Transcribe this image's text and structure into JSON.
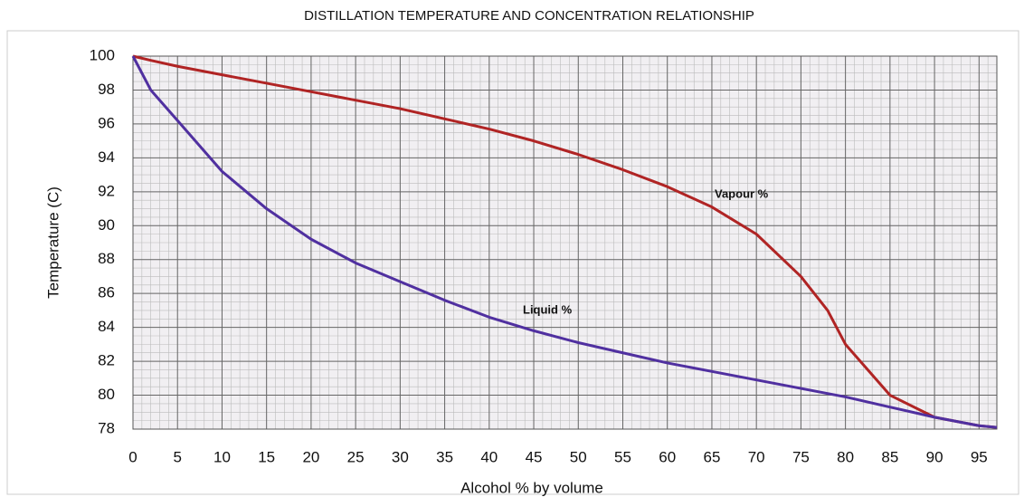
{
  "chart_data": {
    "type": "line",
    "title": "DISTILLATION TEMPERATURE AND CONCENTRATION RELATIONSHIP",
    "xlabel": "Alcohol % by volume",
    "ylabel": "Temperature (C)",
    "x": [
      0,
      2,
      5,
      10,
      15,
      20,
      25,
      30,
      35,
      40,
      45,
      50,
      55,
      60,
      65,
      70,
      75,
      78,
      80,
      85,
      90,
      95,
      97
    ],
    "series": [
      {
        "name": "Vapour %",
        "color": "#b02424",
        "values": [
          100,
          99.75,
          99.4,
          98.9,
          98.4,
          97.9,
          97.4,
          96.9,
          96.3,
          95.7,
          95,
          94.2,
          93.3,
          92.3,
          91.1,
          89.5,
          87,
          85,
          83,
          80,
          78.7,
          78.2,
          78.1
        ]
      },
      {
        "name": "Liquid %",
        "color": "#5030a0",
        "values": [
          100,
          98,
          96.2,
          93.2,
          91,
          89.2,
          87.8,
          86.7,
          85.6,
          84.6,
          83.8,
          83.1,
          82.5,
          81.9,
          81.4,
          80.9,
          80.4,
          80.1,
          79.9,
          79.3,
          78.7,
          78.2,
          78.1
        ]
      }
    ],
    "xlim": [
      0,
      97
    ],
    "xticks": [
      0,
      5,
      10,
      15,
      20,
      25,
      30,
      35,
      40,
      45,
      50,
      55,
      60,
      65,
      70,
      75,
      80,
      85,
      90,
      95
    ],
    "ylim": [
      78,
      100
    ],
    "yticks": [
      78,
      80,
      82,
      84,
      86,
      88,
      90,
      92,
      94,
      96,
      98,
      100
    ],
    "grid": true
  }
}
